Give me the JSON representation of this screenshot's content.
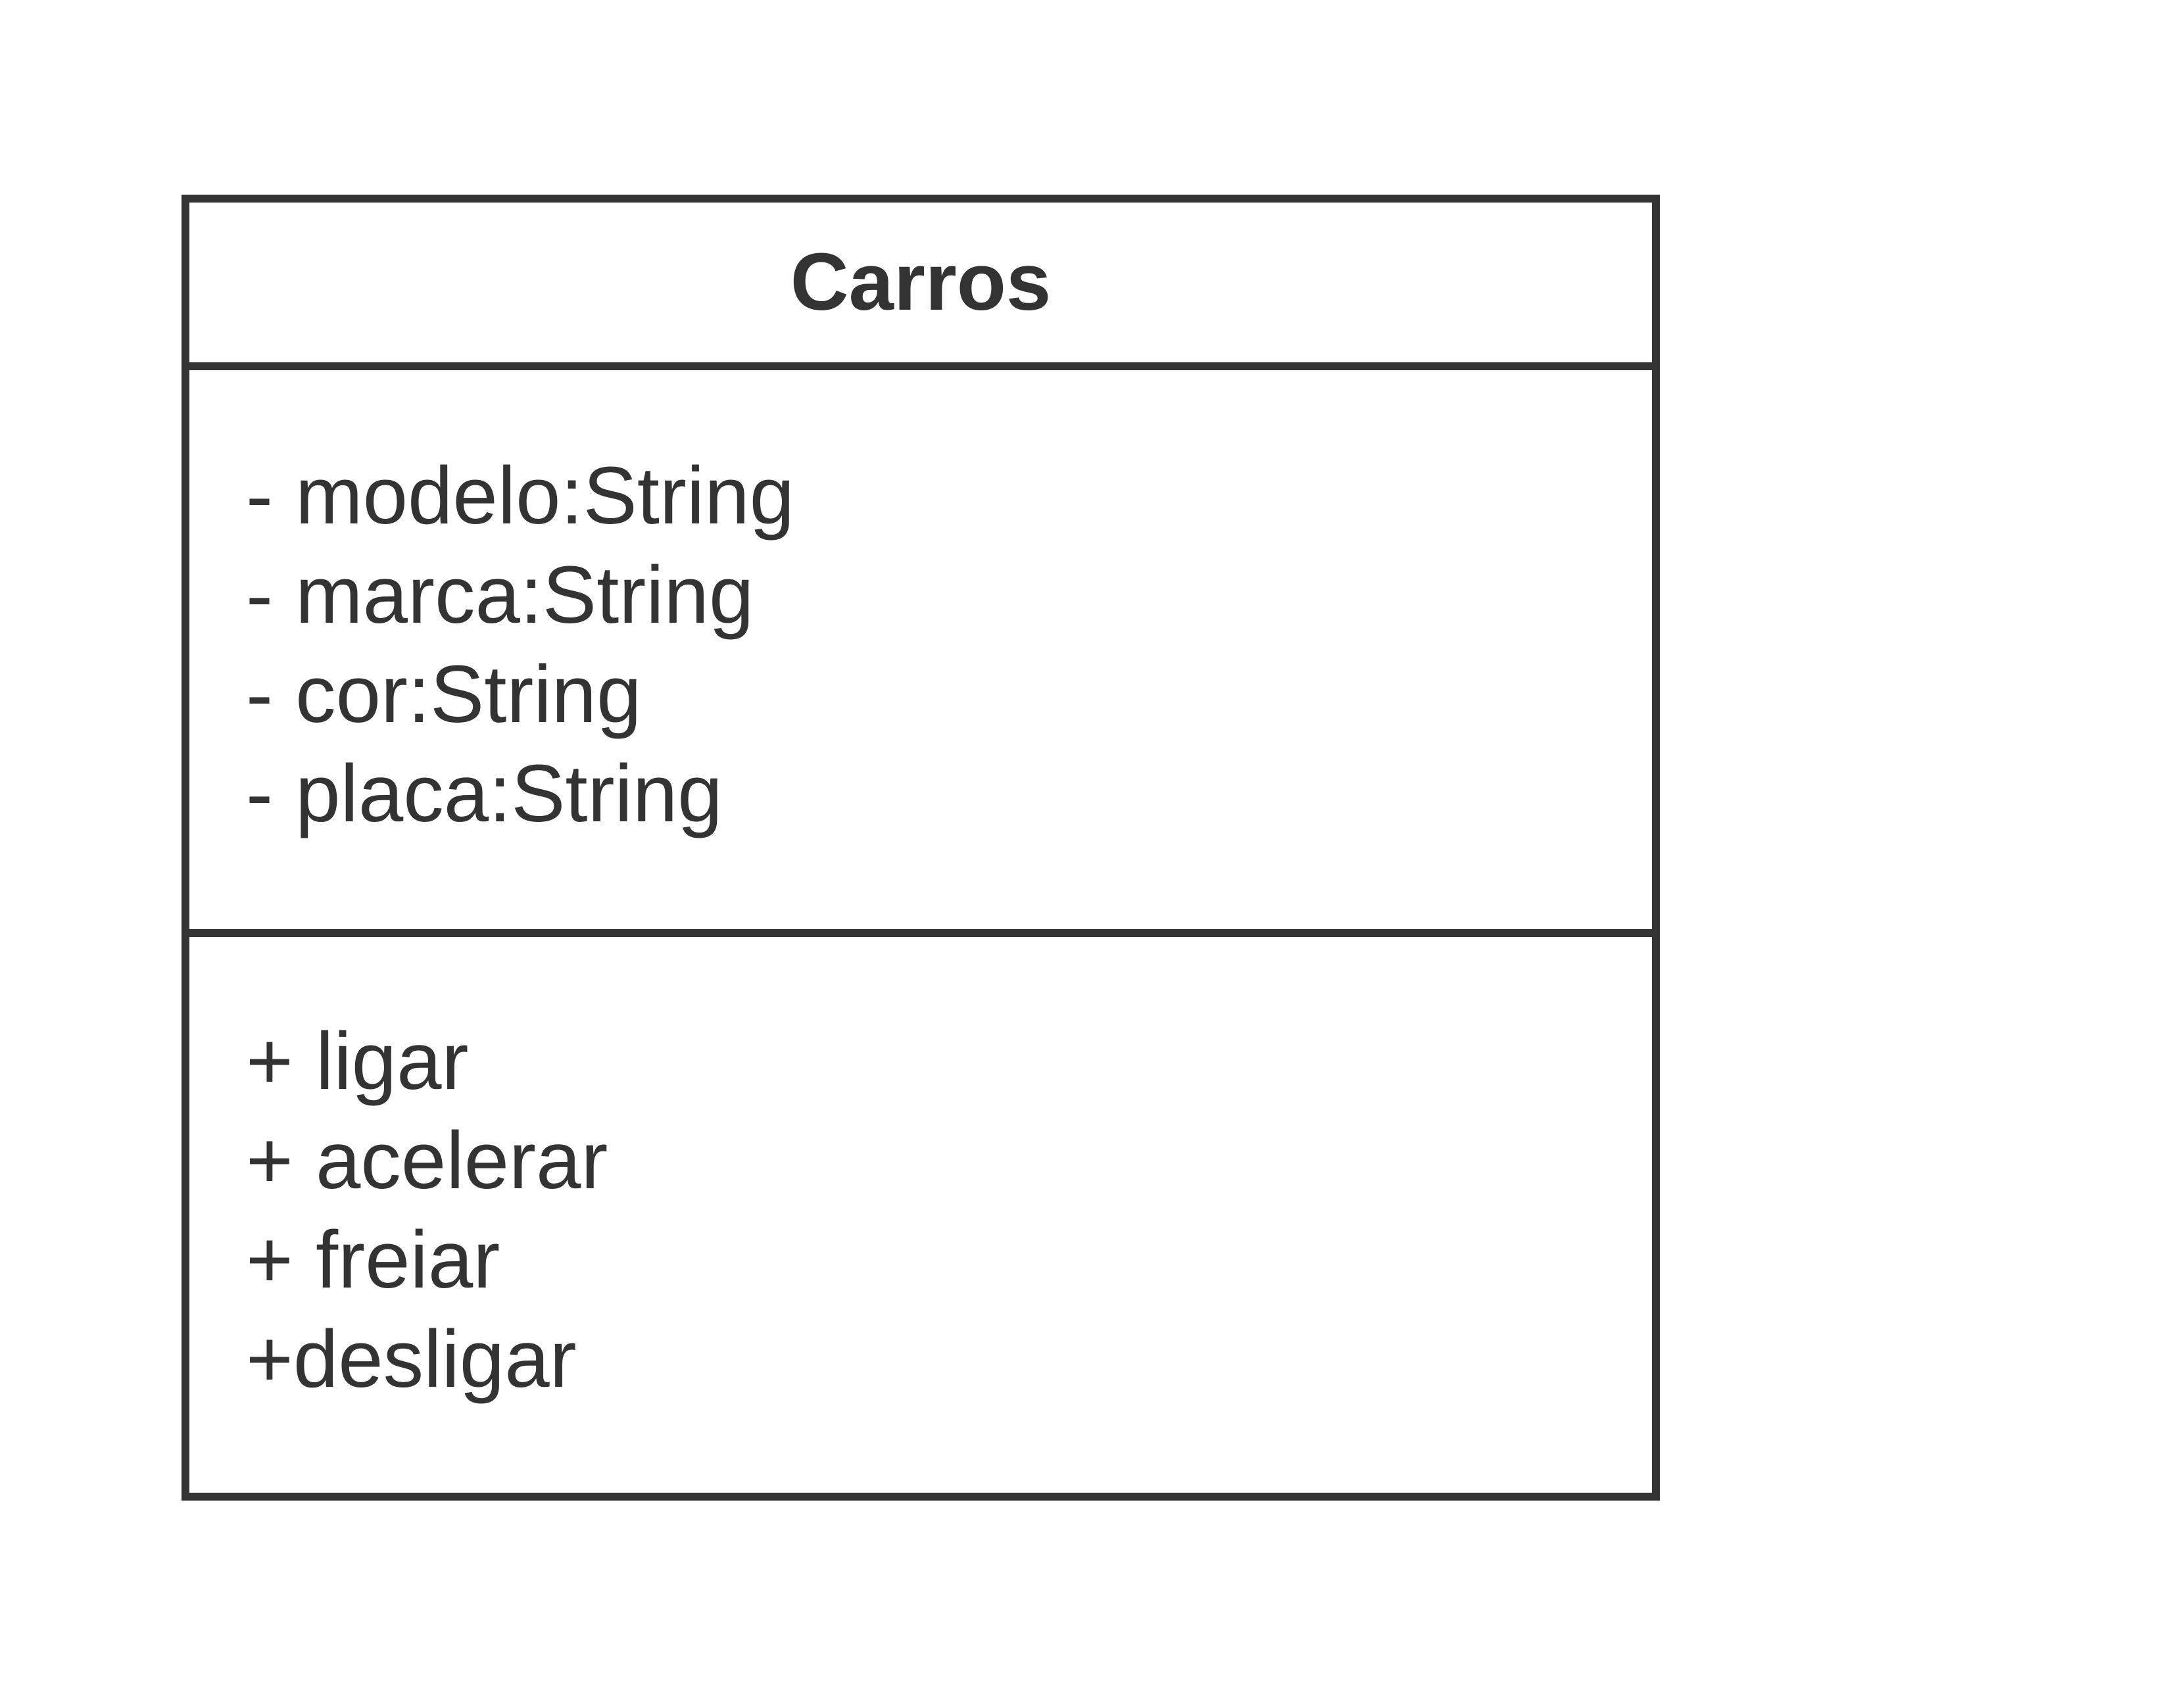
{
  "class": {
    "name": "Carros",
    "attributes": [
      "- modelo:String",
      "- marca:String",
      "- cor:String",
      "- placa:String"
    ],
    "operations": [
      "+ ligar",
      "+ acelerar",
      "+ freiar",
      "+desligar"
    ]
  },
  "colors": {
    "stroke": "#333333",
    "fill": "#ffffff",
    "text": "#333333"
  }
}
